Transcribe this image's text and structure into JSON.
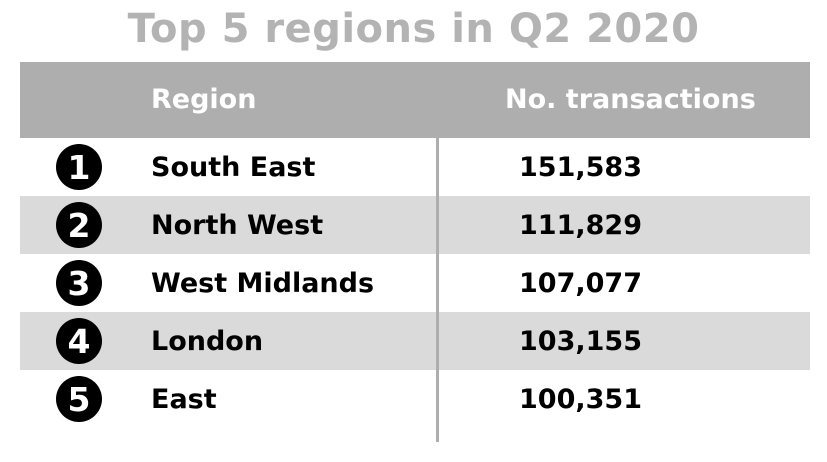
{
  "title": "Top 5 regions in Q2 2020",
  "headers": {
    "region": "Region",
    "transactions": "No. transactions"
  },
  "rows": [
    {
      "rank": "1",
      "region": "South East",
      "transactions": "151,583"
    },
    {
      "rank": "2",
      "region": "North West",
      "transactions": "111,829"
    },
    {
      "rank": "3",
      "region": "West Midlands",
      "transactions": "107,077"
    },
    {
      "rank": "4",
      "region": "London",
      "transactions": "103,155"
    },
    {
      "rank": "5",
      "region": "East",
      "transactions": "100,351"
    }
  ],
  "colors": {
    "title": "#b3b3b3",
    "header_bg": "#aeaeae",
    "shade_bg": "#dadada"
  },
  "chart_data": {
    "type": "table",
    "title": "Top 5 regions in Q2 2020",
    "columns": [
      "Region",
      "No. transactions"
    ],
    "categories": [
      "South East",
      "North West",
      "West Midlands",
      "London",
      "East"
    ],
    "values": [
      151583,
      111829,
      107077,
      103155,
      100351
    ]
  }
}
